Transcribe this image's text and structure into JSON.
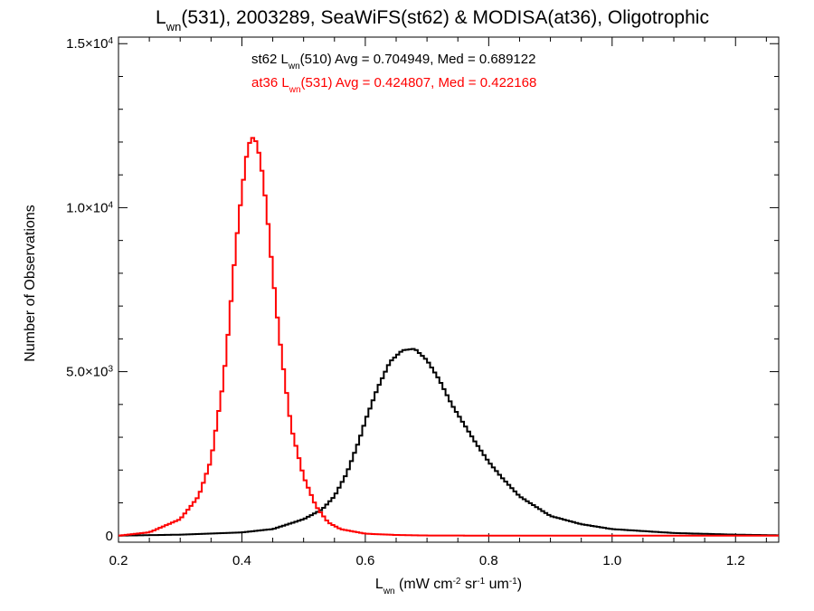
{
  "chart_data": {
    "type": "line",
    "title": {
      "base": "L",
      "sub": "wn",
      "rest": "(531), 2003289, SeaWiFS(st62) & MODISA(at36), Oligotrophic"
    },
    "xlabel": {
      "base": "L",
      "sub": "wn",
      "p1": " (mW cm",
      "sup1": "-2",
      "p2": " sr",
      "sup2": "-1",
      "p3": " um",
      "sup3": "-1",
      "p4": ")"
    },
    "ylabel": "Number of Observations",
    "xlim": [
      0.2,
      1.27
    ],
    "ylim": [
      -200,
      15200
    ],
    "x_ticks": [
      {
        "value": 0.2,
        "label": "0.2"
      },
      {
        "value": 0.4,
        "label": "0.4"
      },
      {
        "value": 0.6,
        "label": "0.6"
      },
      {
        "value": 0.8,
        "label": "0.8"
      },
      {
        "value": 1.0,
        "label": "1.0"
      },
      {
        "value": 1.2,
        "label": "1.2"
      }
    ],
    "y_ticks": [
      {
        "value": 0,
        "mant": "0",
        "exp": ""
      },
      {
        "value": 5000,
        "mant": "5.0×10",
        "exp": "3"
      },
      {
        "value": 10000,
        "mant": "1.0×10",
        "exp": "4"
      },
      {
        "value": 15000,
        "mant": "1.5×10",
        "exp": "4"
      }
    ],
    "annotations": [
      {
        "prefix": "st62 L",
        "sub": "wn",
        "rest": "(510) Avg = 0.704949, Med = 0.689122",
        "color": "#000000"
      },
      {
        "prefix": "at36 L",
        "sub": "wn",
        "rest": "(531) Avg = 0.424807, Med = 0.422168",
        "color": "#ff0000"
      }
    ],
    "series": [
      {
        "color": "#000000",
        "x": [
          0.2,
          0.3,
          0.4,
          0.45,
          0.5,
          0.53,
          0.55,
          0.57,
          0.59,
          0.6,
          0.62,
          0.64,
          0.66,
          0.68,
          0.7,
          0.72,
          0.74,
          0.76,
          0.78,
          0.8,
          0.82,
          0.85,
          0.9,
          0.95,
          1.0,
          1.1,
          1.2,
          1.27
        ],
        "y": [
          0,
          30,
          100,
          200,
          500,
          800,
          1200,
          1900,
          2900,
          3500,
          4500,
          5300,
          5650,
          5700,
          5350,
          4750,
          4000,
          3400,
          2800,
          2250,
          1800,
          1200,
          600,
          350,
          200,
          80,
          30,
          10
        ]
      },
      {
        "color": "#ff0000",
        "x": [
          0.2,
          0.25,
          0.3,
          0.33,
          0.35,
          0.37,
          0.38,
          0.39,
          0.4,
          0.41,
          0.42,
          0.43,
          0.44,
          0.45,
          0.46,
          0.47,
          0.48,
          0.5,
          0.52,
          0.54,
          0.56,
          0.6,
          0.65,
          0.7,
          0.8,
          1.0,
          1.27
        ],
        "y": [
          0,
          100,
          500,
          1200,
          2300,
          4700,
          6600,
          8800,
          10500,
          11900,
          12200,
          11500,
          10000,
          8000,
          6200,
          4700,
          3300,
          1800,
          900,
          400,
          200,
          60,
          20,
          5,
          0,
          0,
          0
        ]
      }
    ]
  }
}
